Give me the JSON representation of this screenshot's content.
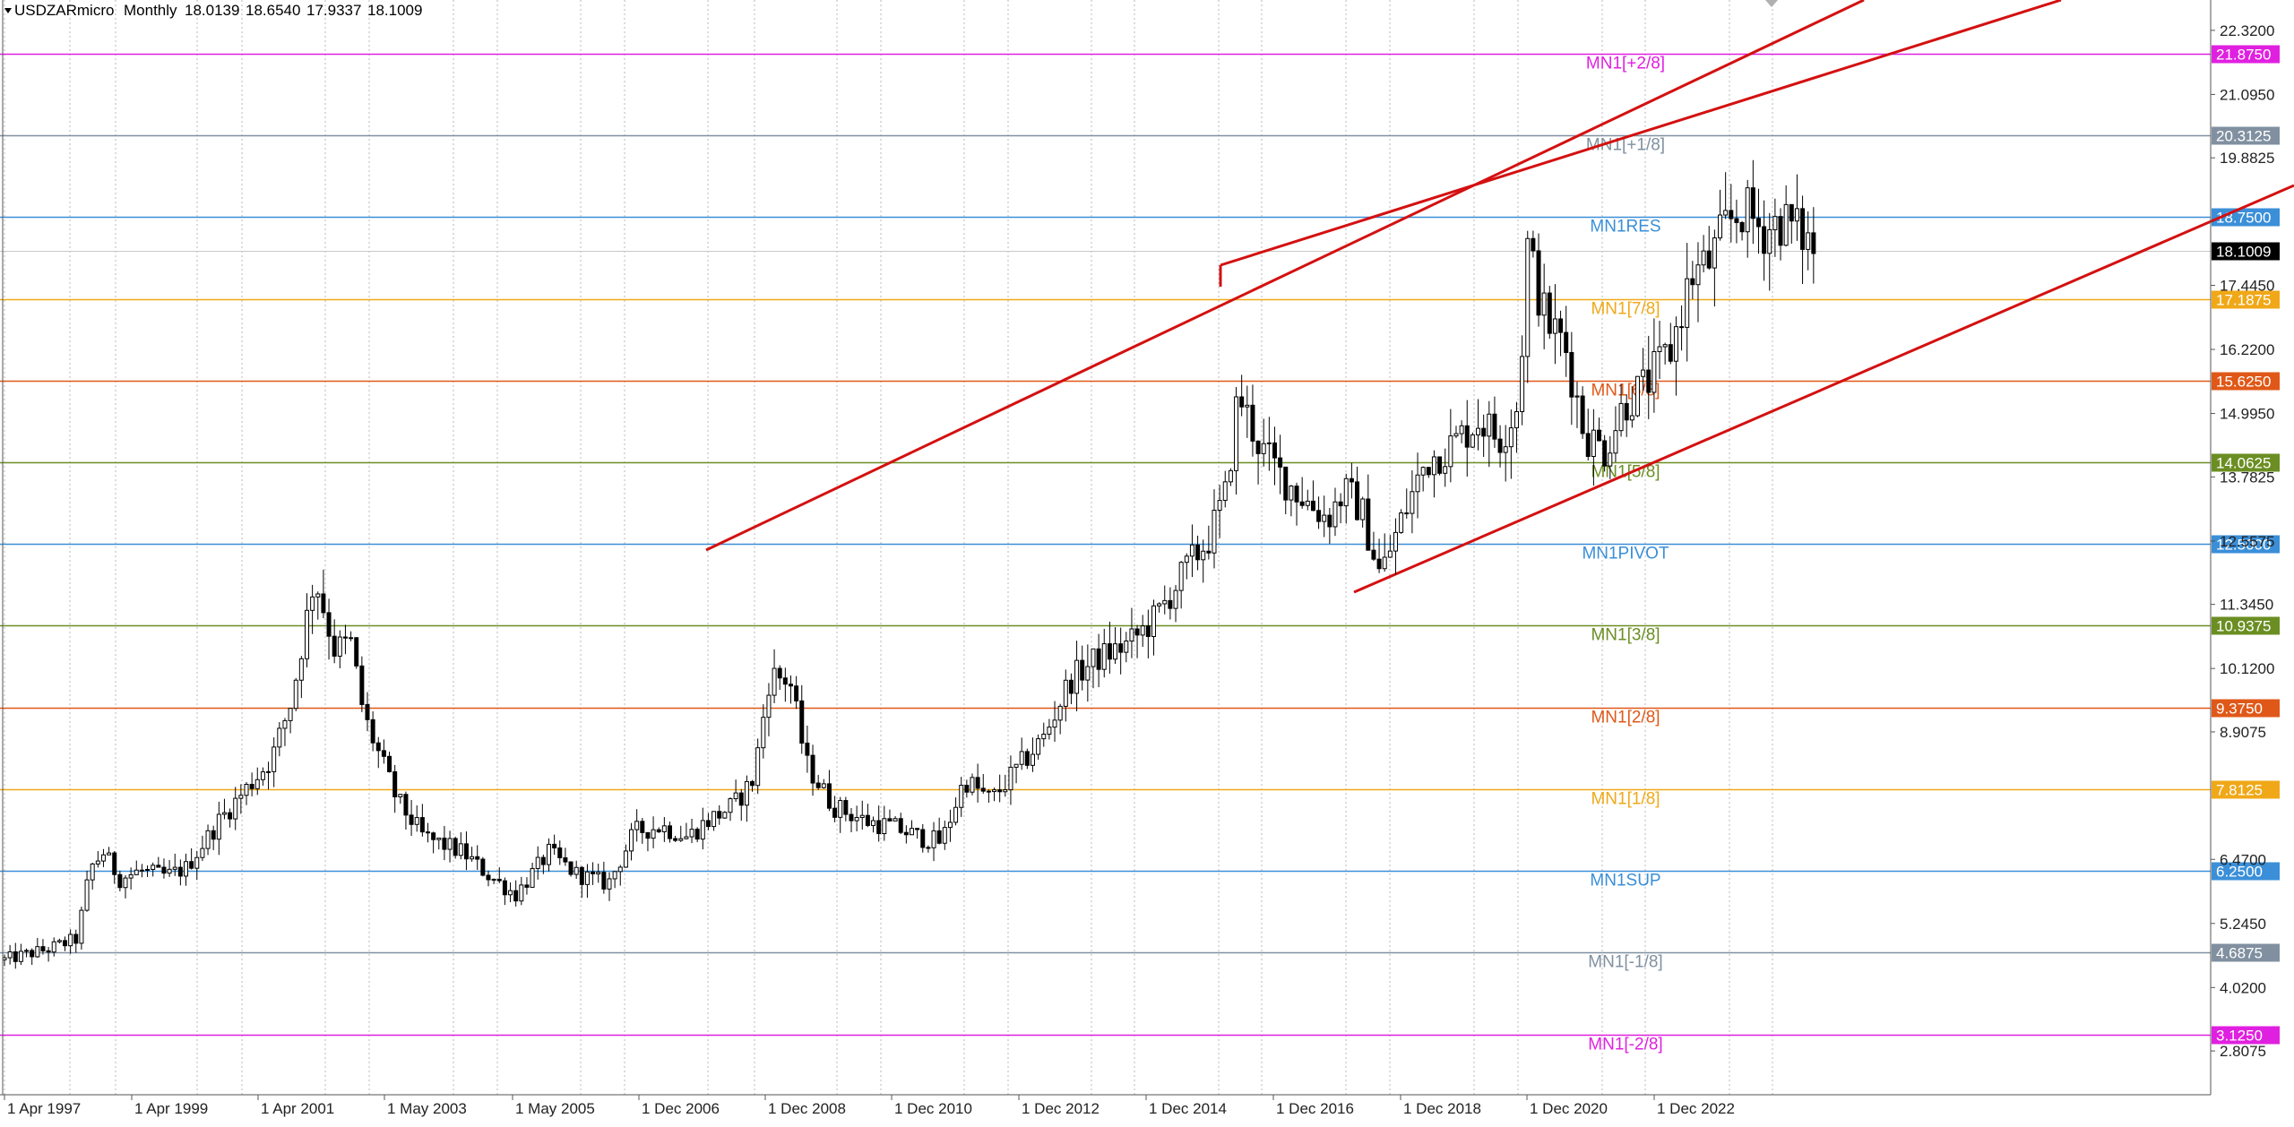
{
  "header": {
    "symbol": "USDZARmicro",
    "timeframe": "Monthly",
    "ohlc": [
      "18.0139",
      "18.6540",
      "17.9337",
      "18.1009"
    ]
  },
  "chart_data": {
    "type": "candlestick",
    "ylim": [
      1.97,
      22.9
    ],
    "grid": "vertical-dotted",
    "y_ticks": [
      "22.3200",
      "21.0950",
      "19.8825",
      "17.4450",
      "16.2200",
      "14.9950",
      "13.7825",
      "12.5575",
      "11.3450",
      "10.1200",
      "8.9075",
      "6.4700",
      "5.2450",
      "4.0200",
      "2.8075"
    ],
    "x_ticks": [
      "1 Apr 1997",
      "1 Apr 1999",
      "1 Apr 2001",
      "1 May 2003",
      "1 May 2005",
      "1 Dec 2006",
      "1 Dec 2008",
      "1 Dec 2010",
      "1 Dec 2012",
      "1 Dec 2014",
      "1 Dec 2016",
      "1 Dec 2018",
      "1 Dec 2020",
      "1 Dec 2022"
    ],
    "murrey_levels": [
      {
        "label": "MN1[+2/8]",
        "price": 21.875,
        "value_text": "21.8750",
        "color": "#e020e0"
      },
      {
        "label": "MN1[+1/8]",
        "price": 20.3125,
        "value_text": "20.3125",
        "color": "#8090a0"
      },
      {
        "label": "MN1RES",
        "price": 18.75,
        "value_text": "18.7500",
        "color": "#3a8fd8"
      },
      {
        "label": "MN1[7/8]",
        "price": 17.1875,
        "value_text": "17.1875",
        "color": "#f0a818"
      },
      {
        "label": "MN1[6/8]",
        "price": 15.625,
        "value_text": "15.6250",
        "color": "#e05818"
      },
      {
        "label": "MN1[5/8]",
        "price": 14.0625,
        "value_text": "14.0625",
        "color": "#6b8e23"
      },
      {
        "label": "MN1PIVOT",
        "price": 12.5,
        "value_text": "12.5000",
        "color": "#3a8fd8"
      },
      {
        "label": "MN1[3/8]",
        "price": 10.9375,
        "value_text": "10.9375",
        "color": "#6b8e23"
      },
      {
        "label": "MN1[2/8]",
        "price": 9.375,
        "value_text": "9.3750",
        "color": "#e05818"
      },
      {
        "label": "MN1[1/8]",
        "price": 7.8125,
        "value_text": "7.8125",
        "color": "#f0a818"
      },
      {
        "label": "MN1SUP",
        "price": 6.25,
        "value_text": "6.2500",
        "color": "#3a8fd8"
      },
      {
        "label": "MN1[-1/8]",
        "price": 4.6875,
        "value_text": "4.6875",
        "color": "#8090a0"
      },
      {
        "label": "MN1[-2/8]",
        "price": 3.125,
        "value_text": "3.1250",
        "color": "#e020e0"
      }
    ],
    "current_price": {
      "price": 18.1009,
      "text": "18.1009"
    },
    "keypoints": [
      [
        1997.25,
        4.55
      ],
      [
        1997.9,
        4.75
      ],
      [
        1998.35,
        4.95
      ],
      [
        1998.55,
        6.3
      ],
      [
        1998.75,
        6.6
      ],
      [
        1999.0,
        6.1
      ],
      [
        1999.3,
        6.25
      ],
      [
        1999.7,
        6.15
      ],
      [
        2000.0,
        6.3
      ],
      [
        2000.5,
        7.2
      ],
      [
        2000.9,
        7.8
      ],
      [
        2001.3,
        8.4
      ],
      [
        2001.6,
        9.5
      ],
      [
        2001.95,
        11.9
      ],
      [
        2002.25,
        10.5
      ],
      [
        2002.5,
        10.6
      ],
      [
        2002.7,
        9.2
      ],
      [
        2003.2,
        7.6
      ],
      [
        2003.6,
        6.9
      ],
      [
        2004.2,
        6.6
      ],
      [
        2004.6,
        6.15
      ],
      [
        2005.0,
        5.8
      ],
      [
        2005.5,
        6.6
      ],
      [
        2005.9,
        6.2
      ],
      [
        2006.4,
        6.0
      ],
      [
        2006.8,
        7.0
      ],
      [
        2007.2,
        7.1
      ],
      [
        2007.6,
        6.9
      ],
      [
        2007.9,
        7.2
      ],
      [
        2008.3,
        7.5
      ],
      [
        2008.6,
        8.0
      ],
      [
        2008.85,
        10.0
      ],
      [
        2009.15,
        9.9
      ],
      [
        2009.4,
        8.3
      ],
      [
        2009.8,
        7.5
      ],
      [
        2010.3,
        7.2
      ],
      [
        2010.7,
        7.1
      ],
      [
        2011.1,
        6.9
      ],
      [
        2011.45,
        6.8
      ],
      [
        2011.8,
        8.0
      ],
      [
        2012.2,
        7.6
      ],
      [
        2012.6,
        8.2
      ],
      [
        2013.0,
        8.8
      ],
      [
        2013.4,
        9.9
      ],
      [
        2013.8,
        10.3
      ],
      [
        2014.3,
        10.6
      ],
      [
        2014.7,
        11.1
      ],
      [
        2015.2,
        12.1
      ],
      [
        2015.5,
        12.6
      ],
      [
        2015.75,
        13.4
      ],
      [
        2015.95,
        15.4
      ],
      [
        2016.1,
        14.9
      ],
      [
        2016.3,
        14.3
      ],
      [
        2016.6,
        13.8
      ],
      [
        2017.0,
        13.3
      ],
      [
        2017.3,
        13.0
      ],
      [
        2017.55,
        13.5
      ],
      [
        2017.8,
        13.2
      ],
      [
        2018.1,
        11.9
      ],
      [
        2018.5,
        13.2
      ],
      [
        2018.8,
        14.1
      ],
      [
        2019.2,
        14.4
      ],
      [
        2019.6,
        14.9
      ],
      [
        2019.9,
        14.5
      ],
      [
        2020.2,
        15.2
      ],
      [
        2020.33,
        18.2
      ],
      [
        2020.6,
        16.8
      ],
      [
        2020.9,
        16.3
      ],
      [
        2021.2,
        14.6
      ],
      [
        2021.5,
        14.3
      ],
      [
        2021.8,
        15.2
      ],
      [
        2022.1,
        15.5
      ],
      [
        2022.5,
        16.2
      ],
      [
        2022.8,
        17.6
      ],
      [
        2023.1,
        17.9
      ],
      [
        2023.35,
        18.6
      ],
      [
        2023.6,
        18.9
      ],
      [
        2023.9,
        18.5
      ],
      [
        2024.2,
        18.7
      ],
      [
        2024.5,
        18.4
      ],
      [
        2024.7,
        18.1
      ]
    ]
  }
}
